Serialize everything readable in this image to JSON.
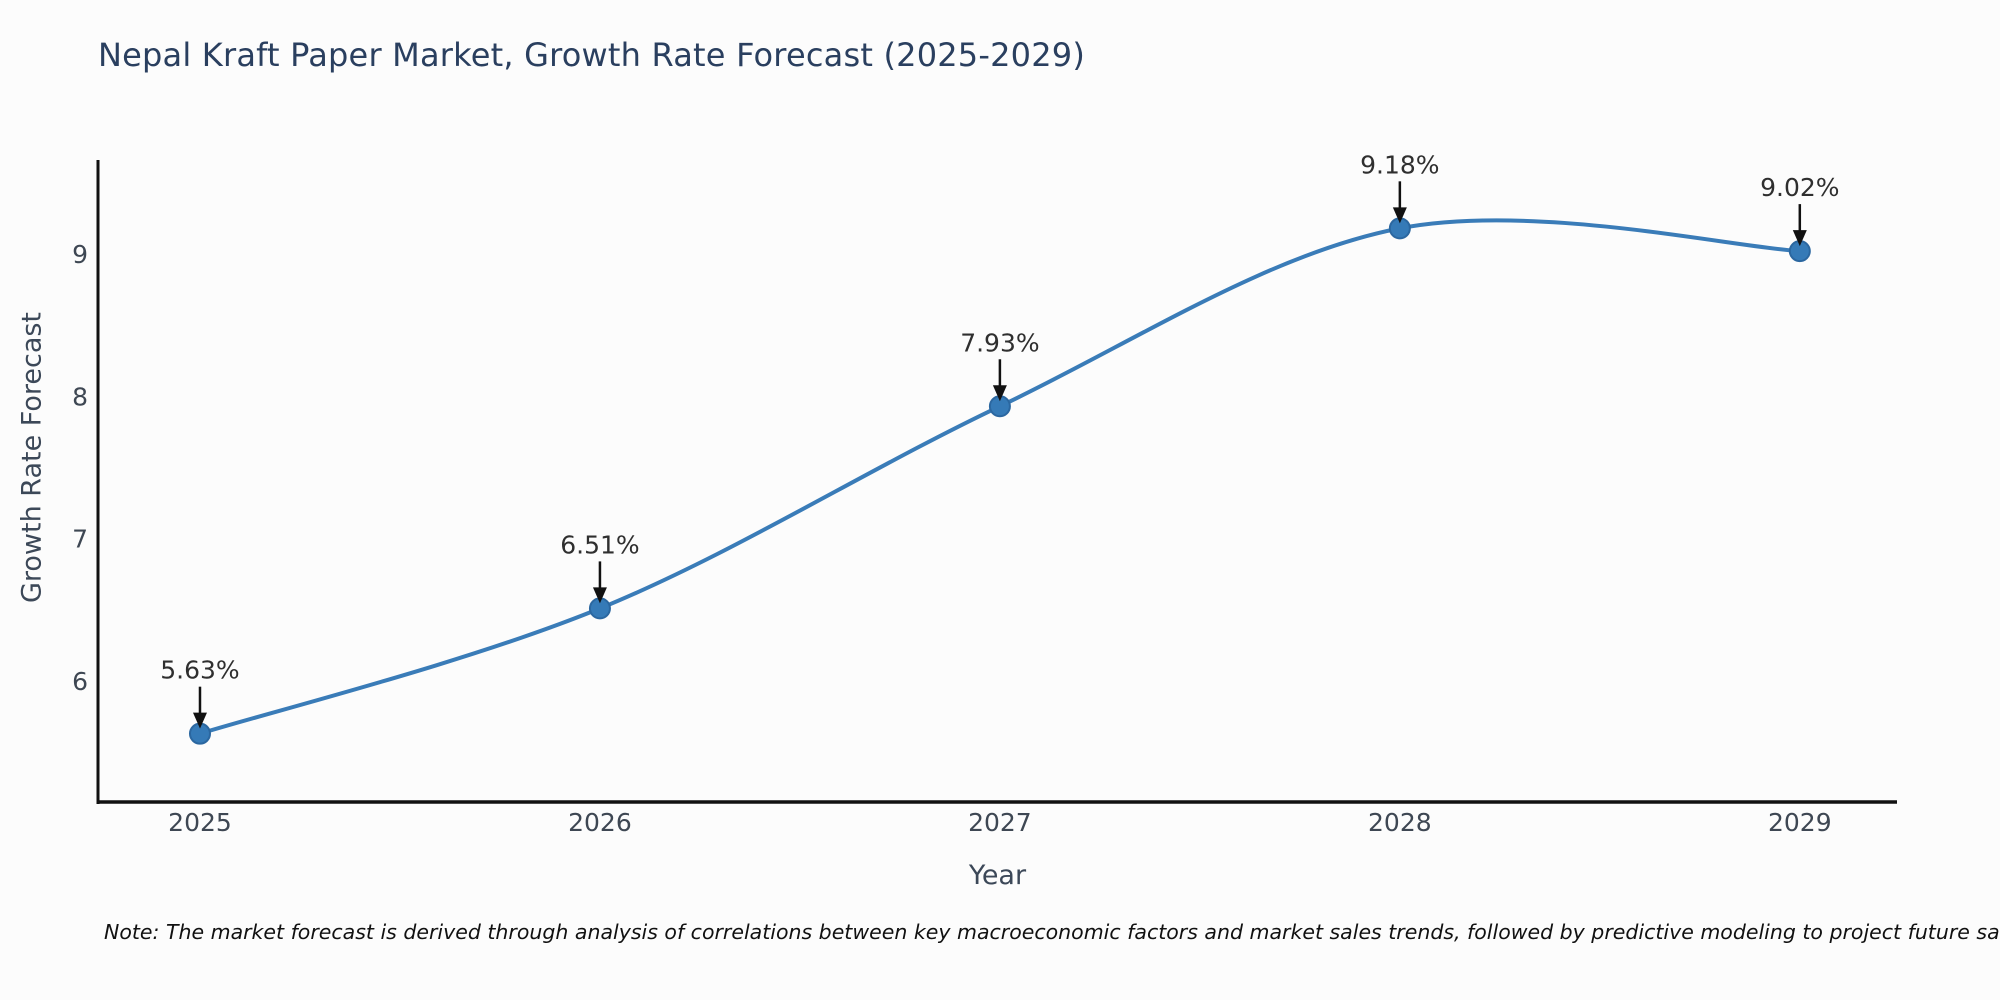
{
  "page": {
    "background": "#fcfcfc"
  },
  "chart_data": {
    "type": "line",
    "title": "Nepal Kraft Paper Market, Growth Rate Forecast (2025-2029)",
    "xlabel": "Year",
    "ylabel": "Growth Rate Forecast",
    "categories": [
      "2025",
      "2026",
      "2027",
      "2028",
      "2029"
    ],
    "x": [
      2025,
      2026,
      2027,
      2028,
      2029
    ],
    "values": [
      5.63,
      6.51,
      7.93,
      9.18,
      9.02
    ],
    "point_labels": [
      "5.63%",
      "6.51%",
      "7.93%",
      "9.18%",
      "9.02%"
    ],
    "y_ticks": [
      "6",
      "7",
      "8",
      "9"
    ],
    "y_tick_values": [
      6,
      7,
      8,
      9
    ],
    "xlim": [
      2024.745,
      2029.243
    ],
    "ylim": [
      5.15,
      9.66
    ],
    "grid": false,
    "legend_position": "none",
    "smooth": true,
    "line_color": "#3a7cb8",
    "marker_color": "#357ab7",
    "marker_edge_color": "#2b67a0",
    "annotation_color": "#2f2f2f",
    "arrow_color": "#111111",
    "axis_color": "#111111",
    "tick_label_color": "#3e4753",
    "axis_label_color": "#3c4858",
    "title_color": "#2a3f5f"
  },
  "note": {
    "text": "Note: The market forecast is derived through analysis of correlations between key macroeconomic factors and market sales trends, followed by predictive modeling to project future sales."
  }
}
